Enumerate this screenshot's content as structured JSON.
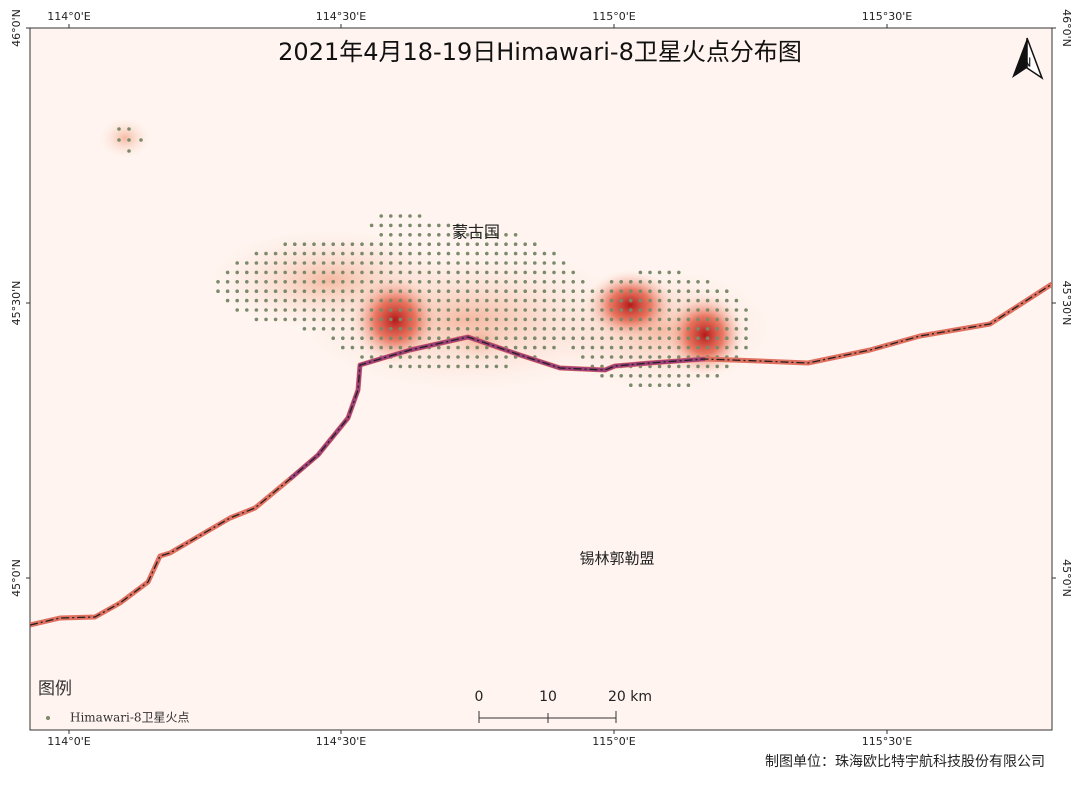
{
  "title": "2021年4月18-19日Himawari-8卫星火点分布图",
  "axes": {
    "x_ticks": [
      "114°0'E",
      "114°30'E",
      "115°0'E",
      "115°30'E"
    ],
    "y_ticks": [
      "46°0'N",
      "45°30'N",
      "45°0'N"
    ]
  },
  "labels": [
    "蒙古国",
    "锡林郭勒盟"
  ],
  "legend": {
    "title": "图例",
    "items": [
      "Himawari-8卫星火点"
    ]
  },
  "scale_bar": {
    "labels": [
      "0",
      "10",
      "20 km"
    ]
  },
  "north_arrow": "N",
  "credit": "制图单位：珠海欧比特宇航科技股份有限公司"
}
